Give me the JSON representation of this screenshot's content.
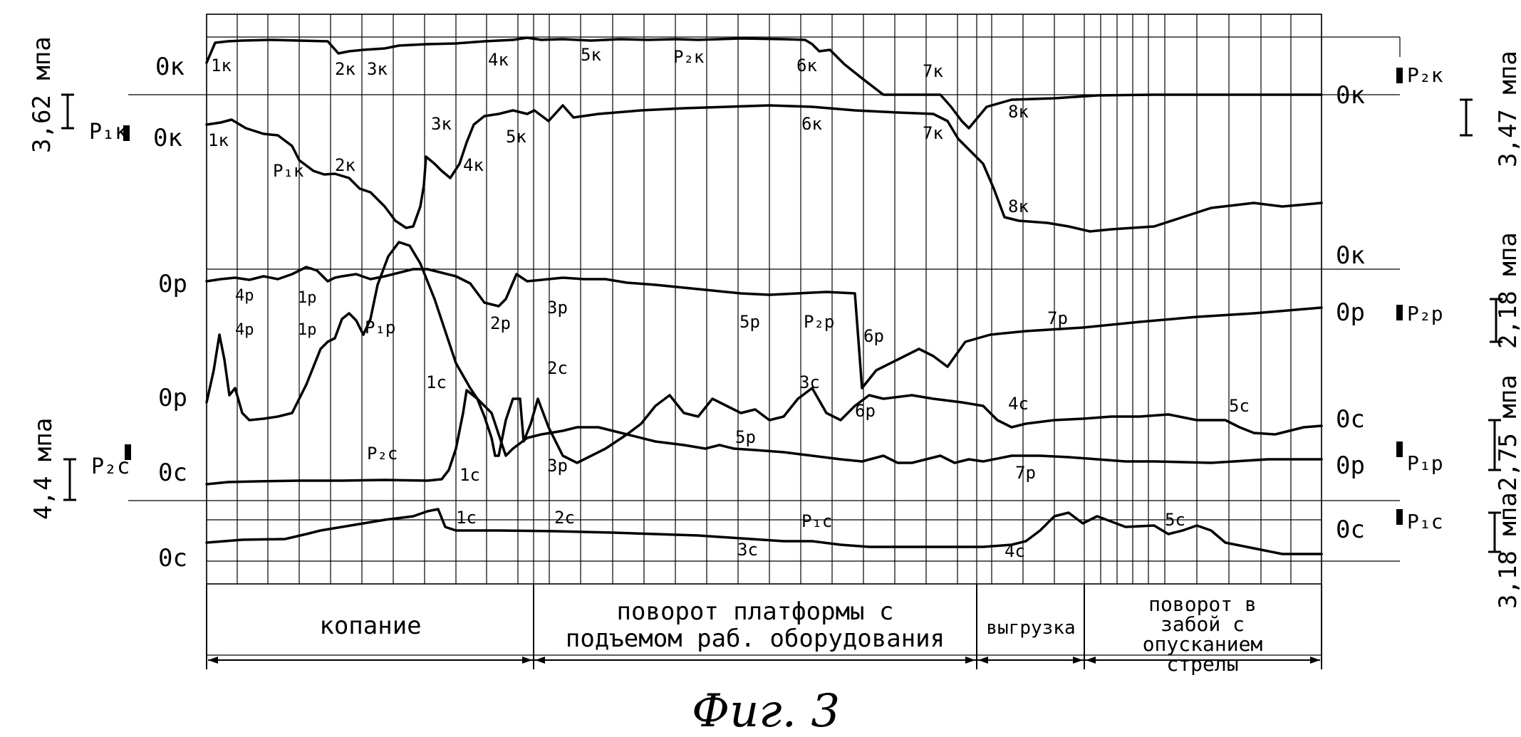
{
  "figure": {
    "caption": "Фиг. 3",
    "scales": {
      "left_top": "3,62 мпа",
      "left_bottom": "4,4 мпа",
      "right_top": "3,47 мпа",
      "right_mid": "2,18 мпа",
      "right_mid2": "2,75 мпа",
      "right_bottom": "3,18 мпа"
    },
    "left_markers": {
      "top": "Р₁к",
      "bottom": "Р₂с"
    },
    "right_markers": {
      "top": "Р₂к",
      "mid": "Р₂р",
      "mid2": "Р₁р",
      "bottom": "Р₁с"
    },
    "phases": [
      "копание",
      "поворот платформы с подъемом раб. оборудования",
      "выгрузка",
      "поворот в забой с опусканием стрелы"
    ],
    "zero_labels": {
      "left": [
        "0к",
        "0к",
        "0р",
        "0р",
        "0с",
        "0с"
      ],
      "right": [
        "0к",
        "0к",
        "0р",
        "0с",
        "0р",
        "0с"
      ]
    },
    "point_labels": [
      "1к",
      "2к",
      "3к",
      "4к",
      "5к",
      "Р₂к",
      "6к",
      "7к",
      "1к",
      "Р₁к",
      "2к",
      "3к",
      "4к",
      "5к",
      "6к",
      "7к",
      "8к",
      "8к",
      "4р",
      "1р",
      "4р",
      "1р",
      "Р₁р",
      "2р",
      "3р",
      "5р",
      "Р₂р",
      "6р",
      "7р",
      "1с",
      "2с",
      "3с",
      "6р",
      "4с",
      "5с",
      "Р₂с",
      "1с",
      "3р",
      "5р",
      "7р",
      "1с",
      "2с",
      "Р₁с",
      "3с",
      "4с",
      "5с"
    ]
  }
}
